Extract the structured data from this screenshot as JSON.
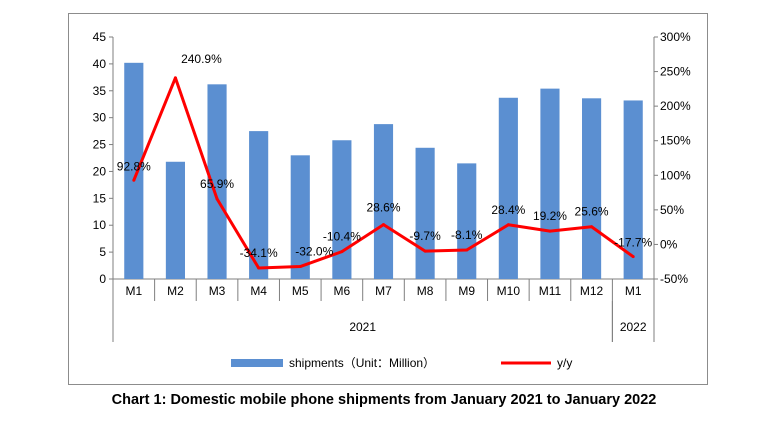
{
  "chart_data": {
    "type": "bar+line",
    "title": "Chart 1: Domestic mobile phone shipments from January 2021 to January 2022",
    "categories": [
      "M1",
      "M2",
      "M3",
      "M4",
      "M5",
      "M6",
      "M7",
      "M8",
      "M9",
      "M10",
      "M11",
      "M12",
      "M1"
    ],
    "year_groups": [
      {
        "label": "2021",
        "from": 0,
        "to": 11
      },
      {
        "label": "2022",
        "from": 12,
        "to": 12
      }
    ],
    "series": [
      {
        "name": "shipments（Unit：Million）",
        "type": "bar",
        "axis": "left",
        "color": "#5b8fd1",
        "values": [
          40.2,
          21.8,
          36.2,
          27.5,
          23.0,
          25.8,
          28.8,
          24.4,
          21.5,
          33.7,
          35.4,
          33.6,
          33.2
        ]
      },
      {
        "name": "y/y",
        "type": "line",
        "axis": "right",
        "color": "#ff0000",
        "values": [
          92.8,
          240.9,
          65.9,
          -34.1,
          -32.0,
          -10.4,
          28.6,
          -9.7,
          -8.1,
          28.4,
          19.2,
          25.6,
          -17.7
        ],
        "labels": [
          "92.8%",
          "240.9%",
          "65.9%",
          "-34.1%",
          "-32.0%",
          "-10.4%",
          "28.6%",
          "-9.7%",
          "-8.1%",
          "28.4%",
          "19.2%",
          "25.6%",
          "-17.7%"
        ]
      }
    ],
    "left_axis": {
      "min": 0,
      "max": 45,
      "step": 5,
      "ticks": [
        "0",
        "5",
        "10",
        "15",
        "20",
        "25",
        "30",
        "35",
        "40",
        "45"
      ]
    },
    "right_axis": {
      "min": -50,
      "max": 300,
      "step": 50,
      "ticks": [
        "-50%",
        "0%",
        "50%",
        "100%",
        "150%",
        "200%",
        "250%",
        "300%"
      ]
    },
    "legend_position": "bottom"
  }
}
